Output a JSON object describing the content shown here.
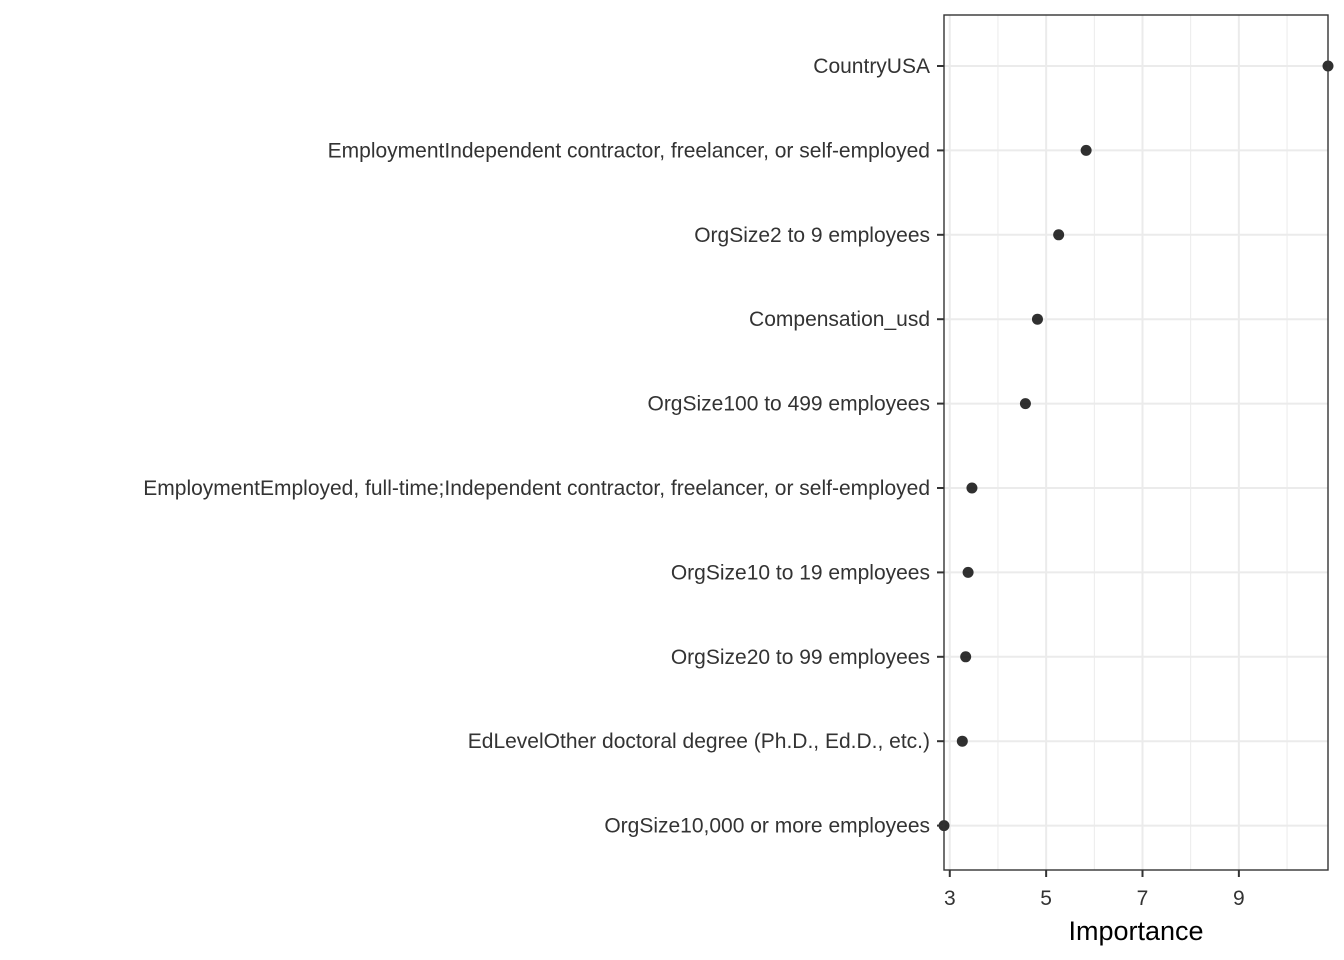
{
  "chart_data": {
    "type": "scatter",
    "title": "",
    "xlabel": "Importance",
    "ylabel": "",
    "categories": [
      "CountryUSA",
      "EmploymentIndependent contractor, freelancer, or self-employed",
      "OrgSize2 to 9 employees",
      "Compensation_usd",
      "OrgSize100 to 499 employees",
      "EmploymentEmployed, full-time;Independent contractor, freelancer, or self-employed",
      "OrgSize10 to 19 employees",
      "OrgSize20 to 99 employees",
      "EdLevelOther doctoral degree (Ph.D., Ed.D., etc.)",
      "OrgSize10,000 or more employees"
    ],
    "values": [
      10.85,
      5.83,
      5.26,
      4.82,
      4.57,
      3.46,
      3.38,
      3.33,
      3.26,
      2.88
    ],
    "xlim": [
      2.88,
      10.85
    ],
    "xticks": [
      3,
      5,
      7,
      9
    ],
    "grid": true,
    "legend": "none",
    "point_color": "#1a1a1a",
    "grid_color": "#ebebeb",
    "border_color": "#333333"
  }
}
